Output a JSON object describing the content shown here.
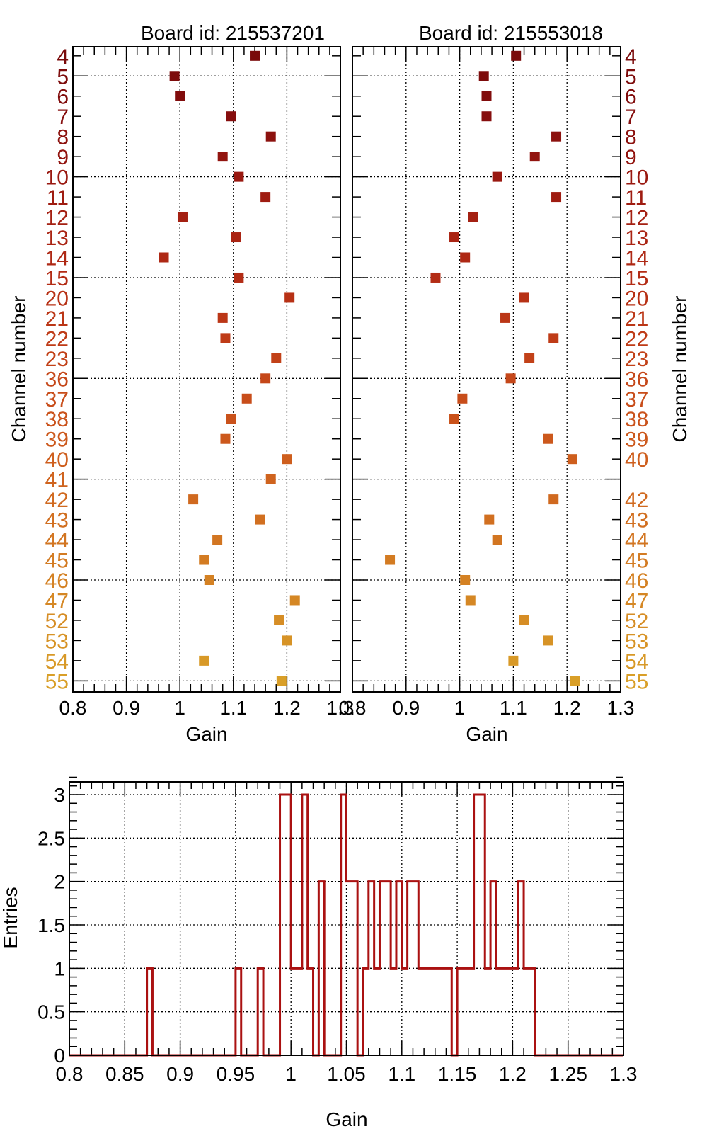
{
  "chart_data": [
    {
      "type": "scatter",
      "title": "Board id: 215537201",
      "xlabel": "Gain",
      "ylabel": "Channel number",
      "xlim": [
        0.8,
        1.3
      ],
      "xticks": [
        "0.8",
        "0.9",
        "1",
        "1.1",
        "1.2",
        "1.3"
      ],
      "channels": [
        "4",
        "5",
        "6",
        "7",
        "8",
        "9",
        "10",
        "11",
        "12",
        "13",
        "14",
        "15",
        "20",
        "21",
        "22",
        "23",
        "36",
        "37",
        "38",
        "39",
        "40",
        "41",
        "42",
        "43",
        "44",
        "45",
        "46",
        "47",
        "52",
        "53",
        "54",
        "55"
      ],
      "channel_colors": [
        "#7a0a0a",
        "#7d0b0b",
        "#810c0c",
        "#860e0e",
        "#8c110e",
        "#92140f",
        "#991810",
        "#9f1c11",
        "#a42012",
        "#aa2413",
        "#ae2814",
        "#b32c15",
        "#b73115",
        "#bb3616",
        "#bf3b17",
        "#c24118",
        "#c54719",
        "#c84d1a",
        "#ca521b",
        "#cc581c",
        "#ce5e1d",
        "#cf631e",
        "#d0691f",
        "#d16f20",
        "#d27521",
        "#d37b22",
        "#d48123",
        "#d58724",
        "#d68d25",
        "#d79326",
        "#d89927",
        "#d99f28"
      ],
      "gains": [
        1.14,
        0.99,
        1.0,
        1.095,
        1.17,
        1.08,
        1.11,
        1.16,
        1.005,
        1.105,
        0.97,
        1.11,
        1.205,
        1.08,
        1.085,
        1.18,
        1.16,
        1.125,
        1.095,
        1.085,
        1.2,
        1.17,
        1.025,
        1.15,
        1.07,
        1.045,
        1.055,
        1.215,
        1.185,
        1.2,
        1.045,
        1.19
      ]
    },
    {
      "type": "scatter",
      "title": "Board id: 215553018",
      "xlabel": "Gain",
      "ylabel": "Channel number",
      "xlim": [
        0.8,
        1.3
      ],
      "xticks": [
        "0.8",
        "0.9",
        "1",
        "1.1",
        "1.2",
        "1.3"
      ],
      "channels": [
        "4",
        "5",
        "6",
        "7",
        "8",
        "9",
        "10",
        "11",
        "12",
        "13",
        "14",
        "15",
        "20",
        "21",
        "22",
        "23",
        "36",
        "37",
        "38",
        "39",
        "40",
        "",
        "42",
        "43",
        "44",
        "45",
        "46",
        "47",
        "52",
        "53",
        "54",
        "55"
      ],
      "gains": [
        1.105,
        1.045,
        1.05,
        1.05,
        1.18,
        1.14,
        1.07,
        1.18,
        1.025,
        0.99,
        1.01,
        0.955,
        1.12,
        1.085,
        1.175,
        1.13,
        1.095,
        1.005,
        0.99,
        1.165,
        1.21,
        null,
        1.175,
        1.055,
        1.07,
        0.87,
        1.01,
        1.02,
        1.12,
        1.165,
        1.1,
        1.215
      ]
    },
    {
      "type": "histogram",
      "xlabel": "Gain",
      "ylabel": "Entries",
      "xlim": [
        0.8,
        1.3
      ],
      "ylim": [
        0,
        3.2
      ],
      "xticks": [
        "0.8",
        "0.85",
        "0.9",
        "0.95",
        "1",
        "1.05",
        "1.1",
        "1.15",
        "1.2",
        "1.25",
        "1.3"
      ],
      "yticks": [
        "0",
        "0.5",
        "1",
        "1.5",
        "2",
        "2.5",
        "3"
      ],
      "color": "#aa1111",
      "bins": [
        {
          "x": 0.87,
          "count": 1
        },
        {
          "x": 0.95,
          "count": 1
        },
        {
          "x": 0.97,
          "count": 1
        },
        {
          "x": 0.99,
          "count": 3
        },
        {
          "x": 0.995,
          "count": 3
        },
        {
          "x": 1.0,
          "count": 1
        },
        {
          "x": 1.005,
          "count": 1
        },
        {
          "x": 1.01,
          "count": 3
        },
        {
          "x": 1.015,
          "count": 1
        },
        {
          "x": 1.025,
          "count": 2
        },
        {
          "x": 1.045,
          "count": 3
        },
        {
          "x": 1.05,
          "count": 2
        },
        {
          "x": 1.055,
          "count": 2
        },
        {
          "x": 1.065,
          "count": 1
        },
        {
          "x": 1.07,
          "count": 2
        },
        {
          "x": 1.075,
          "count": 1
        },
        {
          "x": 1.08,
          "count": 2
        },
        {
          "x": 1.085,
          "count": 2
        },
        {
          "x": 1.09,
          "count": 1
        },
        {
          "x": 1.095,
          "count": 2
        },
        {
          "x": 1.1,
          "count": 1
        },
        {
          "x": 1.105,
          "count": 2
        },
        {
          "x": 1.11,
          "count": 2
        },
        {
          "x": 1.115,
          "count": 1
        },
        {
          "x": 1.12,
          "count": 1
        },
        {
          "x": 1.125,
          "count": 1
        },
        {
          "x": 1.13,
          "count": 1
        },
        {
          "x": 1.135,
          "count": 1
        },
        {
          "x": 1.14,
          "count": 1
        },
        {
          "x": 1.15,
          "count": 1
        },
        {
          "x": 1.155,
          "count": 1
        },
        {
          "x": 1.16,
          "count": 1
        },
        {
          "x": 1.165,
          "count": 3
        },
        {
          "x": 1.17,
          "count": 3
        },
        {
          "x": 1.175,
          "count": 1
        },
        {
          "x": 1.18,
          "count": 2
        },
        {
          "x": 1.185,
          "count": 1
        },
        {
          "x": 1.19,
          "count": 1
        },
        {
          "x": 1.195,
          "count": 1
        },
        {
          "x": 1.2,
          "count": 1
        },
        {
          "x": 1.205,
          "count": 2
        },
        {
          "x": 1.21,
          "count": 1
        },
        {
          "x": 1.215,
          "count": 1
        }
      ]
    }
  ]
}
